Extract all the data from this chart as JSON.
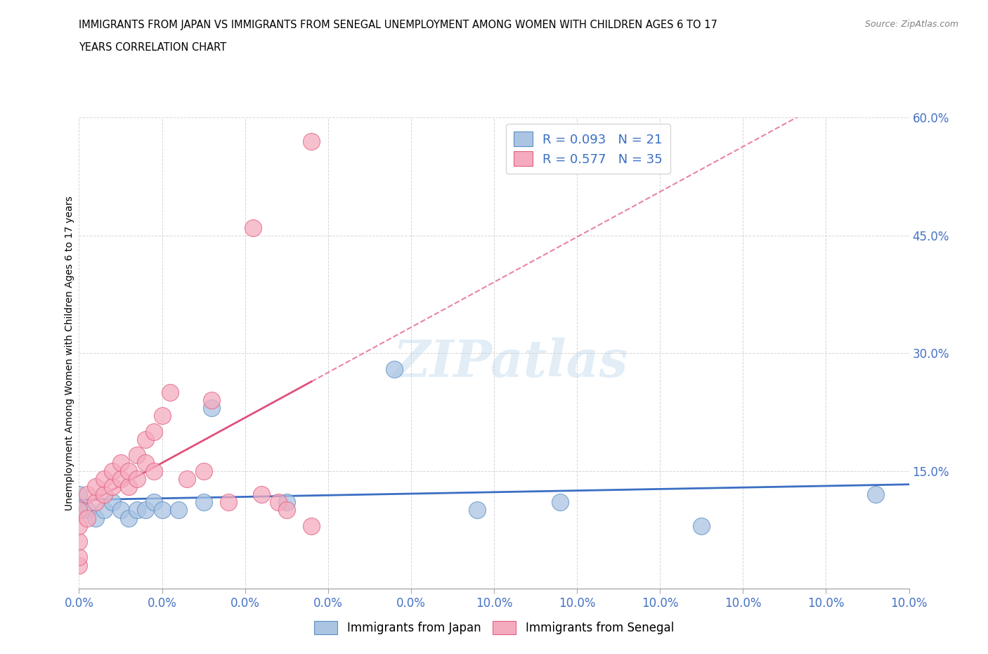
{
  "title_line1": "IMMIGRANTS FROM JAPAN VS IMMIGRANTS FROM SENEGAL UNEMPLOYMENT AMONG WOMEN WITH CHILDREN AGES 6 TO 17",
  "title_line2": "YEARS CORRELATION CHART",
  "source": "Source: ZipAtlas.com",
  "ylabel": "Unemployment Among Women with Children Ages 6 to 17 years",
  "xlim": [
    0.0,
    0.1
  ],
  "ylim": [
    0.0,
    0.6
  ],
  "xticks": [
    0.0,
    0.01,
    0.02,
    0.03,
    0.04,
    0.05,
    0.06,
    0.07,
    0.08,
    0.09,
    0.1
  ],
  "yticks": [
    0.0,
    0.15,
    0.3,
    0.45,
    0.6
  ],
  "xticklabels_show": {
    "0.0": "0.0%",
    "0.1": "10.0%"
  },
  "yticklabels_show": {
    "0.15": "15.0%",
    "0.30": "30.0%",
    "0.45": "45.0%",
    "0.60": "60.0%"
  },
  "japan_R": 0.093,
  "japan_N": 21,
  "senegal_R": 0.577,
  "senegal_N": 35,
  "japan_color": "#aac4e2",
  "senegal_color": "#f5abbe",
  "japan_edge_color": "#5b8ec4",
  "senegal_edge_color": "#e06080",
  "japan_trend_color": "#3b6fc4",
  "senegal_trend_color": "#e0507a",
  "watermark": "ZIPatlas",
  "japan_x": [
    0.0,
    0.0,
    0.001,
    0.002,
    0.003,
    0.004,
    0.005,
    0.006,
    0.007,
    0.008,
    0.009,
    0.01,
    0.012,
    0.015,
    0.016,
    0.025,
    0.038,
    0.048,
    0.058,
    0.075,
    0.096
  ],
  "japan_y": [
    0.1,
    0.12,
    0.1,
    0.09,
    0.1,
    0.11,
    0.1,
    0.09,
    0.1,
    0.1,
    0.11,
    0.1,
    0.1,
    0.11,
    0.23,
    0.11,
    0.28,
    0.1,
    0.11,
    0.08,
    0.12
  ],
  "senegal_x": [
    0.0,
    0.0,
    0.0,
    0.0,
    0.0,
    0.001,
    0.001,
    0.002,
    0.002,
    0.003,
    0.003,
    0.004,
    0.004,
    0.005,
    0.005,
    0.006,
    0.006,
    0.007,
    0.007,
    0.008,
    0.008,
    0.009,
    0.009,
    0.01,
    0.011,
    0.013,
    0.015,
    0.016,
    0.018,
    0.021,
    0.022,
    0.024,
    0.025,
    0.028,
    0.028
  ],
  "senegal_y": [
    0.03,
    0.04,
    0.06,
    0.08,
    0.1,
    0.09,
    0.12,
    0.11,
    0.13,
    0.12,
    0.14,
    0.13,
    0.15,
    0.14,
    0.16,
    0.13,
    0.15,
    0.14,
    0.17,
    0.16,
    0.19,
    0.15,
    0.2,
    0.22,
    0.25,
    0.14,
    0.15,
    0.24,
    0.11,
    0.46,
    0.12,
    0.11,
    0.1,
    0.08,
    0.57
  ]
}
